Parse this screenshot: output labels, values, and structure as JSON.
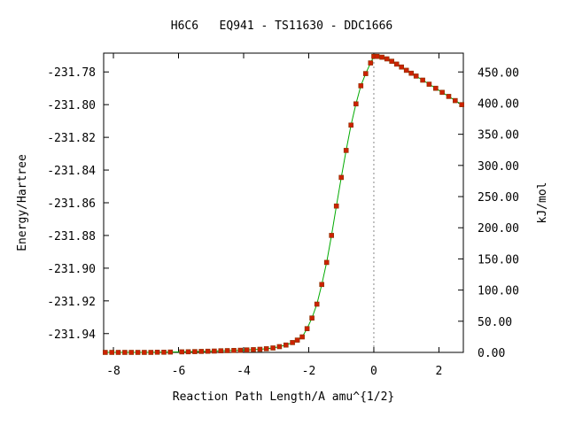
{
  "chart_data": {
    "type": "line",
    "title": "H6C6   EQ941 - TS11630 - DDC1666",
    "xlabel": "Reaction Path Length/A amu^{1/2}",
    "ylabel": "Energy/Hartree",
    "y2label": "kJ/mol",
    "xlim": [
      -8.3,
      2.75
    ],
    "ylim": [
      -231.9515,
      -231.7685
    ],
    "y2lim": [
      0,
      480.2
    ],
    "grid": false,
    "legend": "none",
    "x_ticks": [
      -8,
      -6,
      -4,
      -2,
      0,
      2
    ],
    "x_tick_labels": [
      "-8",
      "-6",
      "-4",
      "-2",
      "0",
      "2"
    ],
    "y_ticks": [
      -231.78,
      -231.8,
      -231.82,
      -231.84,
      -231.86,
      -231.88,
      -231.9,
      -231.92,
      -231.94
    ],
    "y_tick_labels": [
      "-231.78",
      "-231.80",
      "-231.82",
      "-231.84",
      "-231.86",
      "-231.88",
      "-231.90",
      "-231.92",
      "-231.94"
    ],
    "y2_ticks": [
      0,
      50,
      100,
      150,
      200,
      250,
      300,
      350,
      400,
      450
    ],
    "y2_tick_labels": [
      "0.00",
      "50.00",
      "100.00",
      "150.00",
      "200.00",
      "250.00",
      "300.00",
      "350.00",
      "400.00",
      "450.00"
    ],
    "ts_marker_x": 0,
    "line_color": "#00aa00",
    "marker_color": "#cc2200",
    "series": [
      {
        "x": [
          -8.25,
          -8.05,
          -7.85,
          -7.65,
          -7.45,
          -7.25,
          -7.05,
          -6.85,
          -6.65,
          -6.45,
          -6.25,
          -5.9,
          -5.7,
          -5.5,
          -5.3,
          -5.1,
          -4.9,
          -4.7,
          -4.5,
          -4.3,
          -4.1,
          -3.9,
          -3.7,
          -3.5,
          -3.3,
          -3.1,
          -2.9,
          -2.7,
          -2.5,
          -2.35,
          -2.2,
          -2.05,
          -1.9,
          -1.75,
          -1.6,
          -1.45,
          -1.3,
          -1.15,
          -1.0,
          -0.85,
          -0.7,
          -0.55,
          -0.4,
          -0.25,
          -0.1,
          0.0,
          0.1,
          0.25,
          0.4,
          0.55,
          0.7,
          0.85,
          1.0,
          1.15,
          1.3,
          1.5,
          1.7,
          1.9,
          2.1,
          2.3,
          2.5,
          2.7
        ],
        "y": [
          -231.9515,
          -231.9515,
          -231.9515,
          -231.9515,
          -231.9515,
          -231.9515,
          -231.9515,
          -231.9515,
          -231.9514,
          -231.9514,
          -231.9513,
          -231.9512,
          -231.9511,
          -231.951,
          -231.9509,
          -231.9508,
          -231.9507,
          -231.9505,
          -231.9504,
          -231.9503,
          -231.9502,
          -231.95,
          -231.9498,
          -231.9496,
          -231.9493,
          -231.9488,
          -231.948,
          -231.947,
          -231.9455,
          -231.944,
          -231.942,
          -231.937,
          -231.9305,
          -231.922,
          -231.91,
          -231.8965,
          -231.88,
          -231.862,
          -231.8445,
          -231.828,
          -231.8125,
          -231.7995,
          -231.7885,
          -231.781,
          -231.7745,
          -231.7705,
          -231.7705,
          -231.771,
          -231.772,
          -231.7735,
          -231.7752,
          -231.777,
          -231.779,
          -231.7808,
          -231.7825,
          -231.785,
          -231.7875,
          -231.79,
          -231.7925,
          -231.795,
          -231.7975,
          -231.8
        ]
      }
    ]
  }
}
